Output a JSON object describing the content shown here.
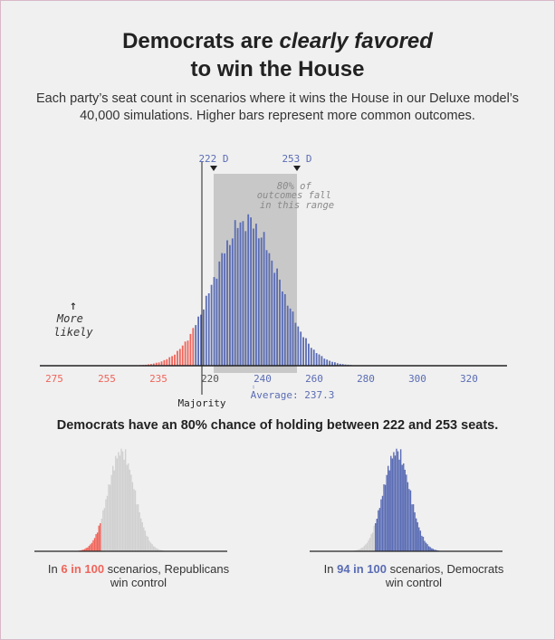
{
  "title": {
    "line1_plain": "Democrats are ",
    "line1_em": "clearly favored",
    "line2": "to win the House"
  },
  "subtitle": "Each party’s seat count in scenarios where it wins the House in our Deluxe model’s 40,000 simulations. Higher bars represent more common outcomes.",
  "colors": {
    "republican": "#f0645a",
    "democrat": "#5a6cb4",
    "neutral": "#d0d0d0",
    "range_band": "#c8c8c8"
  },
  "chart_data": [
    {
      "type": "bar",
      "x_ticks": [
        {
          "label": "275",
          "party": "R"
        },
        {
          "label": "255",
          "party": "R"
        },
        {
          "label": "235",
          "party": "R"
        },
        {
          "label": "220",
          "party": "neutral"
        },
        {
          "label": "240",
          "party": "D"
        },
        {
          "label": "260",
          "party": "D"
        },
        {
          "label": "280",
          "party": "D"
        },
        {
          "label": "300",
          "party": "D"
        },
        {
          "label": "320",
          "party": "D"
        }
      ],
      "majority_line": {
        "label": "Majority",
        "seats": 218
      },
      "range_80": {
        "low": 222,
        "high": 253,
        "low_label": "222 D",
        "high_label": "253 D",
        "note": [
          "80% of",
          "outcomes fall",
          "in this range"
        ]
      },
      "average": {
        "label": "Average: 237.3",
        "value": 237.3
      },
      "y_annotation": {
        "arrow": "↑",
        "line1": "More",
        "line2": "likely"
      },
      "distribution": {
        "mean_dem_seats": 237.3,
        "sd": 12.2,
        "dem_seat_min": 185,
        "dem_seat_max": 285
      }
    },
    {
      "type": "bar",
      "panel": "republican_control",
      "probability_text": "6 in 100",
      "highlight": "R"
    },
    {
      "type": "bar",
      "panel": "democrat_control",
      "probability_text": "94 in 100",
      "highlight": "D"
    }
  ],
  "headline2": "Democrats have an 80% chance of holding between 222 and 253 seats.",
  "captions": {
    "left_pre": "In ",
    "left_em": "6 in 100",
    "left_post_line1": " scenarios, Republicans",
    "left_line2": "win control",
    "right_pre": "In ",
    "right_em": "94 in 100",
    "right_post_line1": " scenarios, Democrats",
    "right_line2": "win control"
  }
}
